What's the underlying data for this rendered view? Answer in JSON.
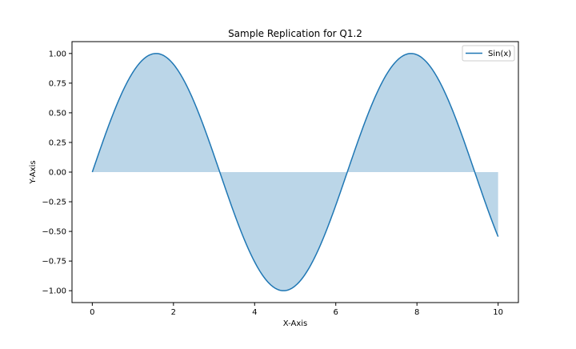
{
  "chart_data": {
    "type": "line",
    "title": "Sample Replication for Q1.2",
    "xlabel": "X-Axis",
    "ylabel": "Y-Axis",
    "xlim": [
      -0.5,
      10.5
    ],
    "ylim": [
      -1.1,
      1.1
    ],
    "xticks": [
      0,
      2,
      4,
      6,
      8,
      10
    ],
    "xtick_labels": [
      "0",
      "2",
      "4",
      "6",
      "8",
      "10"
    ],
    "yticks": [
      1.0,
      0.75,
      0.5,
      0.25,
      0.0,
      -0.25,
      -0.5,
      -0.75,
      -1.0
    ],
    "ytick_labels": [
      "1.00",
      "0.75",
      "0.50",
      "0.25",
      "0.00",
      "−0.25",
      "−0.50",
      "−0.75",
      "−1.00"
    ],
    "grid": false,
    "legend_position": "upper-right",
    "series": [
      {
        "name": "Sin(x)",
        "function": "sin",
        "x_range": [
          0,
          10
        ],
        "fill_to": 0,
        "color": "#1f77b4",
        "fill_color": "#1f77b4",
        "fill_alpha": 0.3
      }
    ]
  }
}
